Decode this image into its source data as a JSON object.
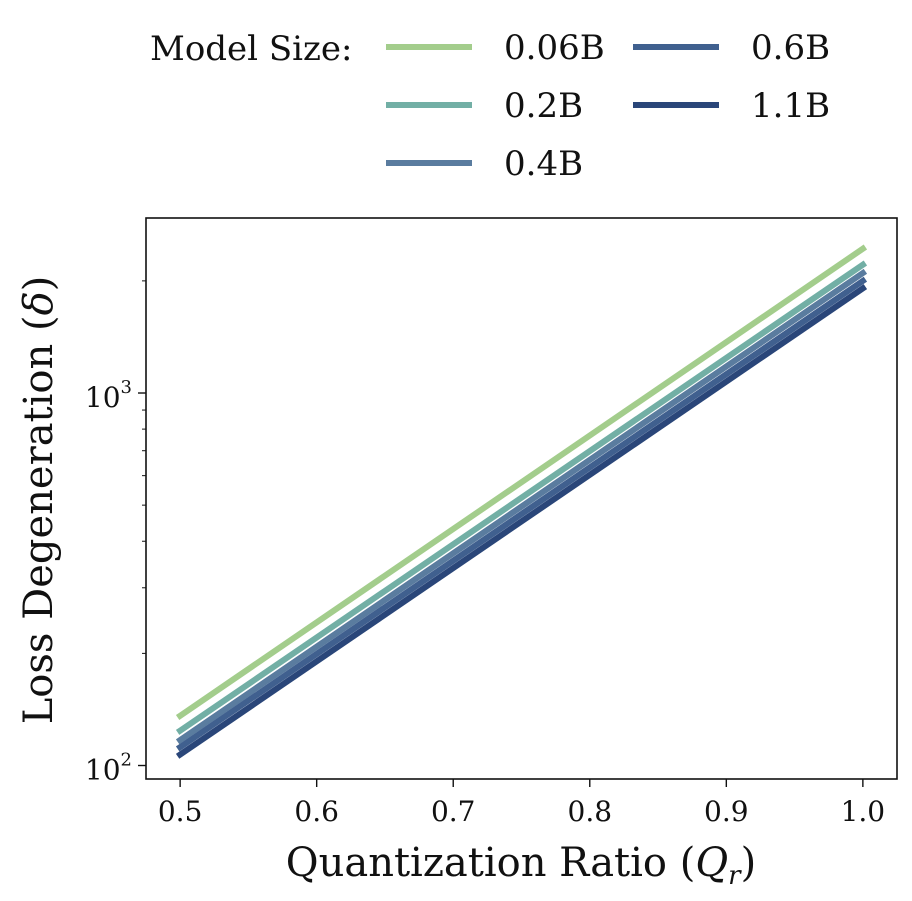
{
  "chart_data": {
    "type": "line",
    "title": "",
    "xlabel": "Quantization Ratio",
    "xlabel_symbol": "Q",
    "xlabel_subscript": "r",
    "ylabel": "Loss Degeneration",
    "ylabel_symbol": "δ",
    "yscale": "log",
    "xlim": [
      0.475,
      1.025
    ],
    "ylim": [
      92,
      2950
    ],
    "x_ticks": [
      0.5,
      0.6,
      0.7,
      0.8,
      0.9,
      1.0
    ],
    "x_tick_labels": [
      "0.5",
      "0.6",
      "0.7",
      "0.8",
      "0.9",
      "1.0"
    ],
    "y_ticks": [
      {
        "value": 100,
        "base": "10",
        "exp": "2"
      },
      {
        "value": 1000,
        "base": "10",
        "exp": "3"
      }
    ],
    "grid": false,
    "legend": {
      "title": "Model Size:",
      "position": "top",
      "columns": 2
    },
    "series": [
      {
        "name": "0.06B",
        "color": "#a3cd8c",
        "x": [
          0.5,
          1.0
        ],
        "values": [
          136,
          2440
        ]
      },
      {
        "name": "0.2B",
        "color": "#72afa5",
        "x": [
          0.5,
          1.0
        ],
        "values": [
          124,
          2210
        ]
      },
      {
        "name": "0.4B",
        "color": "#5a7c9f",
        "x": [
          0.5,
          1.0
        ],
        "values": [
          117,
          2100
        ]
      },
      {
        "name": "0.6B",
        "color": "#40608f",
        "x": [
          0.5,
          1.0
        ],
        "values": [
          112,
          2000
        ]
      },
      {
        "name": "1.1B",
        "color": "#2a4679",
        "x": [
          0.5,
          1.0
        ],
        "values": [
          107,
          1910
        ]
      }
    ]
  }
}
